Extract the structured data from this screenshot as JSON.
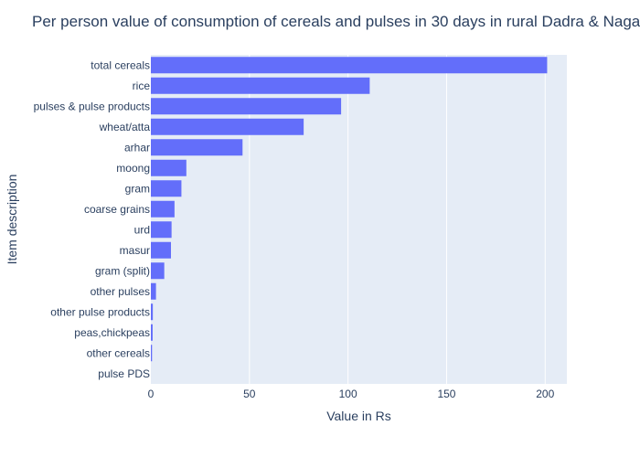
{
  "chart_data": {
    "type": "bar",
    "orientation": "horizontal",
    "title": "Per person value of consumption of cereals and pulses in 30 days in rural Dadra & Naga",
    "xlabel": "Value in Rs",
    "ylabel": "Item description",
    "xlim": [
      0,
      211
    ],
    "xticks": [
      0,
      50,
      100,
      150,
      200
    ],
    "grid": true,
    "bar_color": "#636efa",
    "plot_bg": "#e5ecf6",
    "categories": [
      "total cereals",
      "rice",
      "pulses & pulse products",
      "wheat/atta",
      "arhar",
      "moong",
      "gram",
      "coarse grains",
      "urd",
      "masur",
      "gram (split)",
      "other pulses",
      "other pulse products",
      "peas,chickpeas",
      "other cereals",
      "pulse PDS"
    ],
    "values": [
      201,
      111,
      96.5,
      77.5,
      46.5,
      18,
      15.5,
      12,
      10.5,
      10.2,
      6.8,
      2.6,
      1.0,
      0.9,
      0.6,
      0
    ]
  }
}
